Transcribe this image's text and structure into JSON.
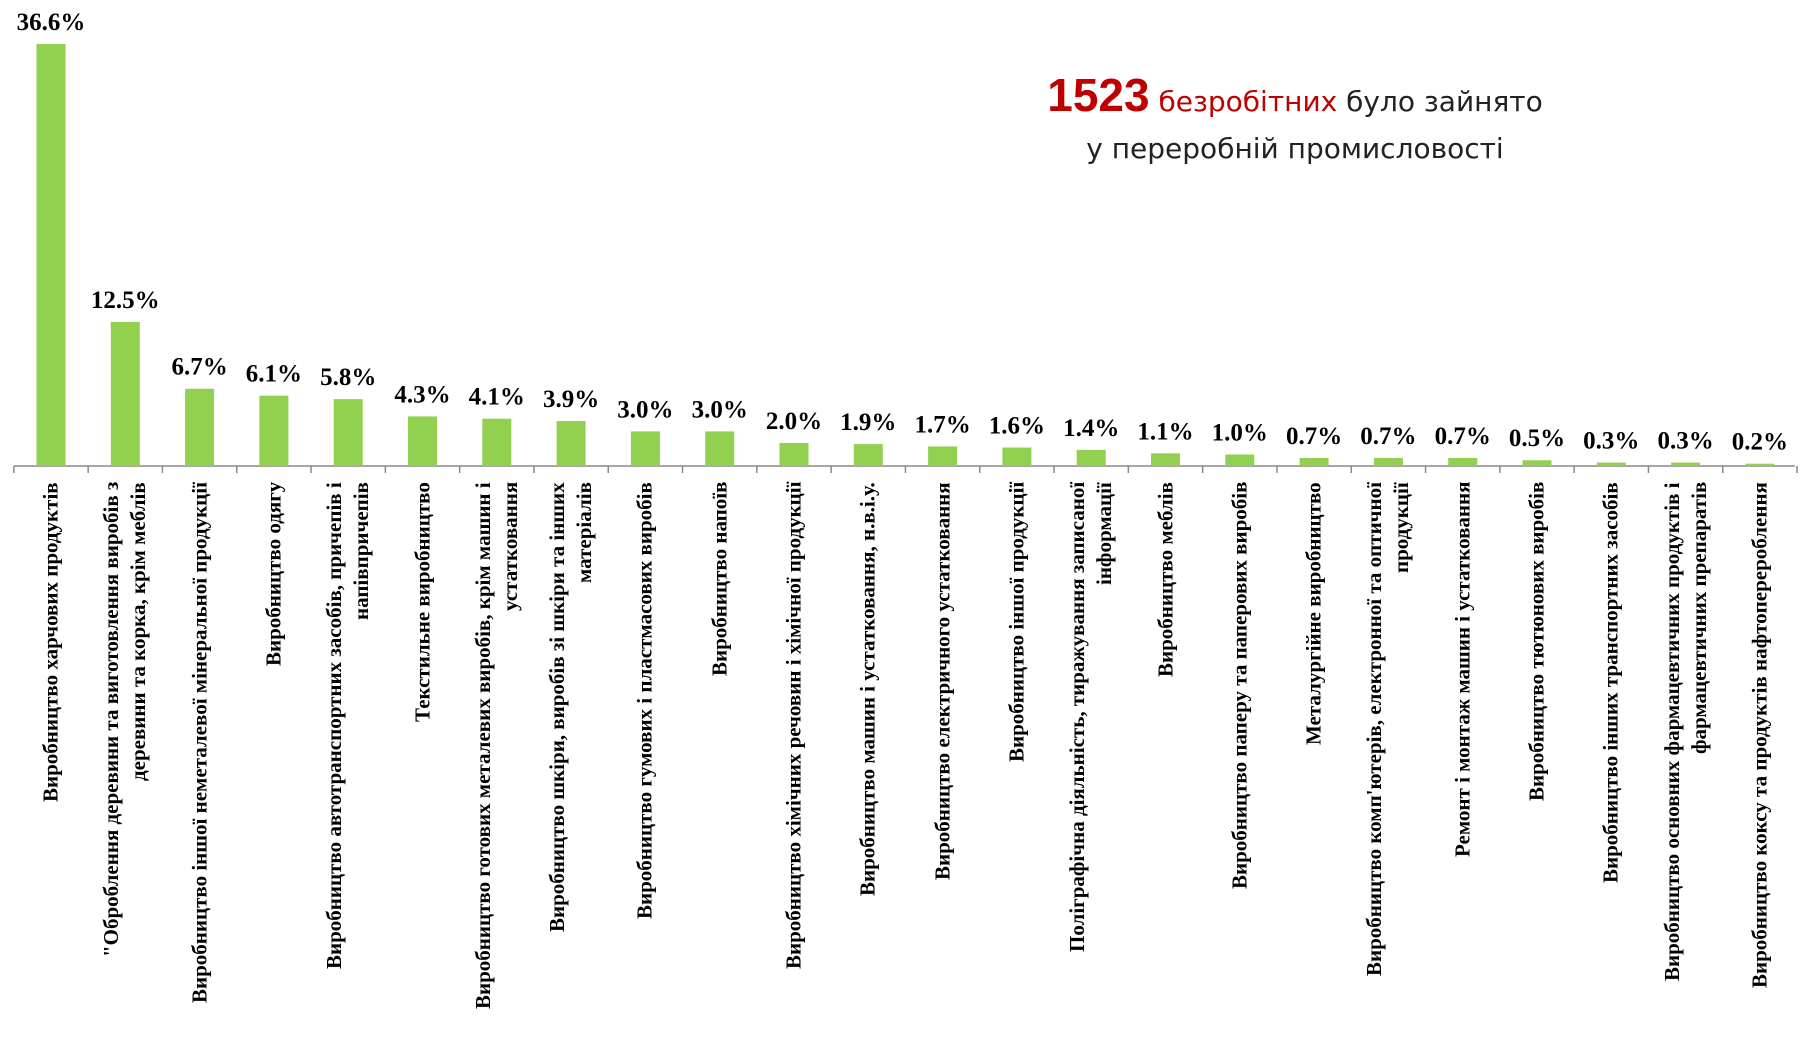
{
  "chart_data": {
    "type": "bar",
    "annotation": {
      "number": "1523",
      "highlight": "безробітних",
      "rest": "було зайнято",
      "line2": "у переробній промисловості"
    },
    "color": "#92d050",
    "categories": [
      "Виробництво харчових продуктів",
      "\"Оброблення деревини та виготовлення виробів з деревини та корка, крім меблів",
      "Виробництво іншої неметалевої мінеральної продукції",
      "Виробництво одягу",
      "Виробництво автотранспортних засобів, причепів і напівпричепів",
      "Текстильне виробництво",
      "Виробництво готових металевих виробів, крім машин і устатковання",
      "Виробництво шкіри, виробів зі шкіри та інших матеріалів",
      "Виробництво гумових і пластмасових виробів",
      "Виробництво напоїв",
      "Виробництво хімічних речовин і хімічної продукції",
      "Виробництво машин і устатковання, н.в.і.у.",
      "Виробництво електричного устатковання",
      "Виробництво іншої продукції",
      "Поліграфічна діяльність, тиражування записаної інформації",
      "Виробництво меблів",
      "Виробництво паперу та паперових виробів",
      "Металургійне виробництво",
      "Виробництво комп'ютерів, електронної та оптичної продукції",
      "Ремонт і монтаж машин і устатковання",
      "Виробництво тютюнових виробів",
      "Виробництво інших транспортних засобів",
      "Виробництво основних фармацевтичних продуктів і фармацевтичних препаратів",
      "Виробництво коксу та продуктів нафтоперероблення"
    ],
    "values": [
      36.6,
      12.5,
      6.7,
      6.1,
      5.8,
      4.3,
      4.1,
      3.9,
      3.0,
      3.0,
      2.0,
      1.9,
      1.7,
      1.6,
      1.4,
      1.1,
      1.0,
      0.7,
      0.7,
      0.7,
      0.5,
      0.3,
      0.3,
      0.2
    ],
    "value_labels": [
      "36.6%",
      "12.5%",
      "6.7%",
      "6.1%",
      "5.8%",
      "4.3%",
      "4.1%",
      "3.9%",
      "3.0%",
      "3.0%",
      "2.0%",
      "1.9%",
      "1.7%",
      "1.6%",
      "1.4%",
      "1.1%",
      "1.0%",
      "0.7%",
      "0.7%",
      "0.7%",
      "0.5%",
      "0.3%",
      "0.3%",
      "0.2%"
    ]
  }
}
